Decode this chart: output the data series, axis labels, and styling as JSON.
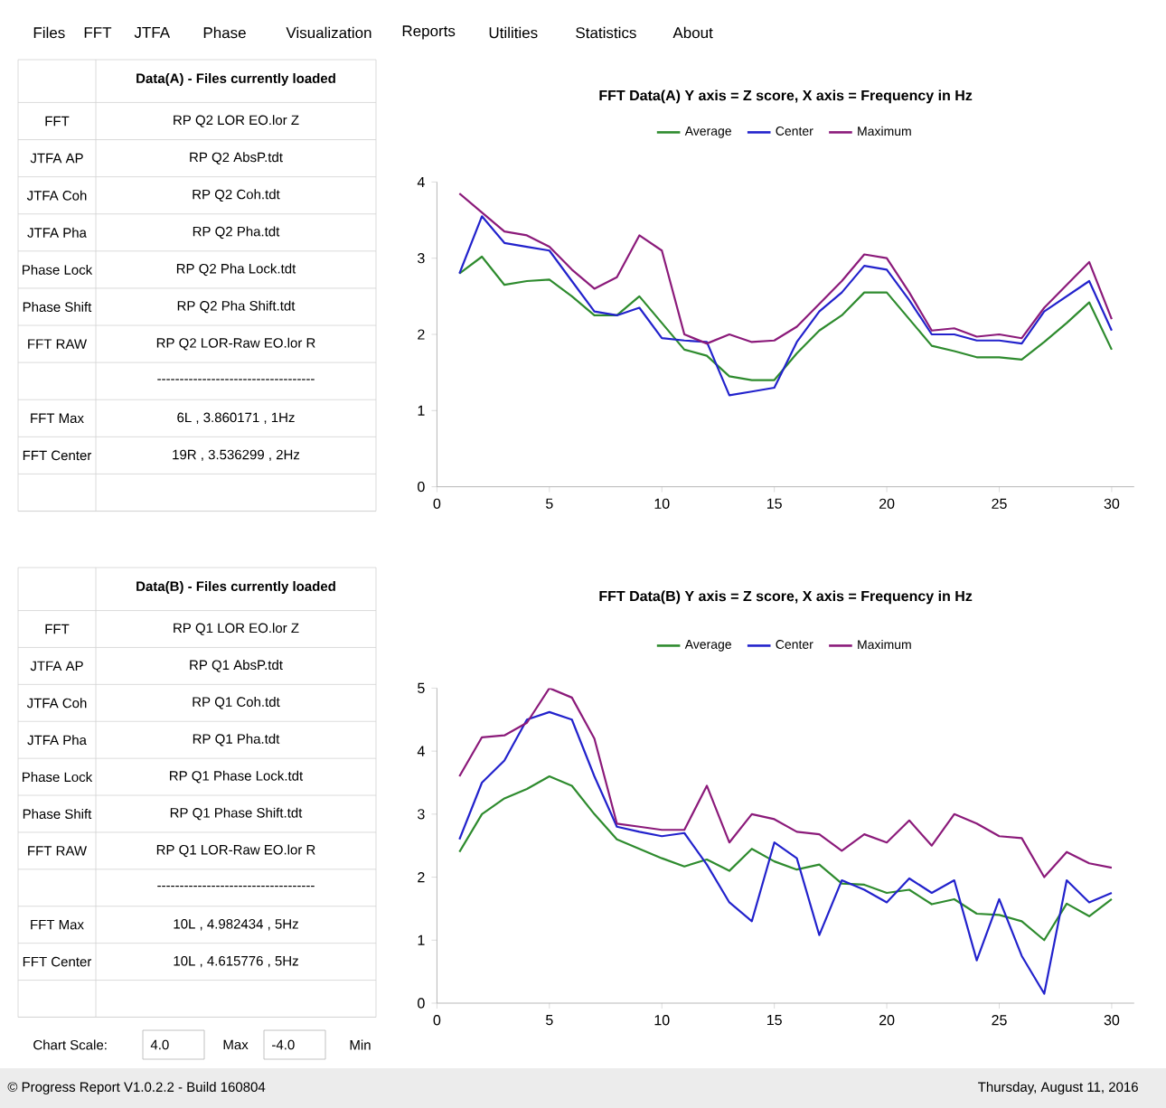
{
  "chart_data": [
    {
      "type": "other",
      "annotations": [
        "Files",
        "FFT",
        "JTFA",
        "Phase",
        "Visualization",
        "Reports",
        "Utilities",
        "Statistics",
        "About"
      ]
    },
    {
      "type": "other",
      "title": "Data(A) - Files currently loaded",
      "y_categories": [
        "FFT",
        "JTFA AP",
        "JTFA Coh",
        "JTFA Pha",
        "Phase Lock",
        "Phase Shift",
        "FFT RAW",
        null,
        "FFT Max",
        "FFT Center",
        null
      ],
      "cell_labels": [
        [
          "RP Q2 LOR EO.lor Z"
        ],
        [
          "RP Q2 AbsP.tdt"
        ],
        [
          "RP Q2 Coh.tdt"
        ],
        [
          "RP Q2 Pha.tdt"
        ],
        [
          "RP Q2 Pha Lock.tdt"
        ],
        [
          "RP Q2 Pha Shift.tdt"
        ],
        [
          "RP Q2 LOR-Raw EO.lor R"
        ],
        [
          "-----------------------------------"
        ],
        [
          "6L , 3.860171 , 1Hz"
        ],
        [
          "19R , 3.536299 , 2Hz"
        ],
        [
          null
        ]
      ]
    },
    {
      "type": "line",
      "title": "FFT Data(A) Y axis = Z score, X axis = Frequency in Hz",
      "x": [
        1,
        2,
        3,
        4,
        5,
        6,
        7,
        8,
        9,
        10,
        11,
        12,
        13,
        14,
        15,
        16,
        17,
        18,
        19,
        20,
        21,
        22,
        23,
        24,
        25,
        26,
        27,
        28,
        29,
        30
      ],
      "series": [
        {
          "name": "Average",
          "color": "#2e8b2e",
          "values": [
            2.8,
            3.02,
            2.65,
            2.7,
            2.72,
            2.5,
            2.25,
            2.25,
            2.5,
            2.15,
            1.8,
            1.72,
            1.45,
            1.4,
            1.4,
            1.75,
            2.05,
            2.25,
            2.55,
            2.55,
            2.2,
            1.85,
            1.78,
            1.7,
            1.7,
            1.67,
            1.9,
            2.15,
            2.42,
            1.8
          ]
        },
        {
          "name": "Center",
          "color": "#2222cc",
          "values": [
            2.8,
            3.55,
            3.2,
            3.15,
            3.1,
            2.7,
            2.3,
            2.25,
            2.35,
            1.95,
            1.92,
            1.9,
            1.2,
            1.25,
            1.3,
            1.9,
            2.3,
            2.55,
            2.9,
            2.85,
            2.45,
            2.0,
            2.0,
            1.92,
            1.92,
            1.88,
            2.3,
            2.5,
            2.7,
            2.05
          ]
        },
        {
          "name": "Maximum",
          "color": "#8b1a7a",
          "values": [
            3.85,
            3.6,
            3.35,
            3.3,
            3.15,
            2.85,
            2.6,
            2.75,
            3.3,
            3.1,
            2.0,
            1.88,
            2.0,
            1.9,
            1.92,
            2.1,
            2.4,
            2.7,
            3.05,
            3.0,
            2.55,
            2.05,
            2.08,
            1.97,
            2.0,
            1.95,
            2.35,
            2.65,
            2.95,
            2.2
          ]
        }
      ],
      "xlim": [
        0,
        31
      ],
      "xticks": [
        0,
        5,
        10,
        15,
        20,
        25,
        30
      ],
      "ylim": [
        0,
        4
      ],
      "yticks": [
        0,
        1,
        2,
        3,
        4
      ],
      "legend": "top",
      "marker": "none",
      "line_style": "solid"
    },
    {
      "type": "other",
      "title": "Data(B) - Files currently loaded",
      "y_categories": [
        "FFT",
        "JTFA AP",
        "JTFA Coh",
        "JTFA Pha",
        "Phase Lock",
        "Phase Shift",
        "FFT RAW",
        null,
        "FFT Max",
        "FFT Center",
        null
      ],
      "cell_labels": [
        [
          "RP Q1 LOR EO.lor Z"
        ],
        [
          "RP Q1 AbsP.tdt"
        ],
        [
          "RP Q1 Coh.tdt"
        ],
        [
          "RP Q1 Pha.tdt"
        ],
        [
          "RP Q1 Phase Lock.tdt"
        ],
        [
          "RP Q1 Phase Shift.tdt"
        ],
        [
          "RP Q1 LOR-Raw EO.lor R"
        ],
        [
          "-----------------------------------"
        ],
        [
          "10L , 4.982434 , 5Hz"
        ],
        [
          "10L , 4.615776 , 5Hz"
        ],
        [
          null
        ]
      ]
    },
    {
      "type": "line",
      "title": "FFT Data(B) Y axis = Z score, X axis = Frequency in Hz",
      "x": [
        1,
        2,
        3,
        4,
        5,
        6,
        7,
        8,
        9,
        10,
        11,
        12,
        13,
        14,
        15,
        16,
        17,
        18,
        19,
        20,
        21,
        22,
        23,
        24,
        25,
        26,
        27,
        28,
        29,
        30
      ],
      "series": [
        {
          "name": "Average",
          "color": "#2e8b2e",
          "values": [
            2.4,
            3.0,
            3.25,
            3.4,
            3.6,
            3.45,
            3.0,
            2.6,
            2.45,
            2.3,
            2.17,
            2.28,
            2.1,
            2.45,
            2.25,
            2.12,
            2.2,
            1.9,
            1.88,
            1.75,
            1.8,
            1.57,
            1.65,
            1.42,
            1.4,
            1.3,
            1.0,
            1.58,
            1.38,
            1.65
          ]
        },
        {
          "name": "Center",
          "color": "#2222cc",
          "values": [
            2.6,
            3.5,
            3.85,
            4.5,
            4.62,
            4.5,
            3.6,
            2.8,
            2.72,
            2.65,
            2.7,
            2.2,
            1.6,
            1.3,
            2.55,
            2.3,
            1.08,
            1.95,
            1.8,
            1.6,
            1.98,
            1.75,
            1.95,
            0.68,
            1.65,
            0.75,
            0.15,
            1.95,
            1.6,
            1.75
          ]
        },
        {
          "name": "Maximum",
          "color": "#8b1a7a",
          "values": [
            3.6,
            4.22,
            4.25,
            4.45,
            5.0,
            4.85,
            4.2,
            2.85,
            2.8,
            2.75,
            2.75,
            3.45,
            2.55,
            3.0,
            2.92,
            2.72,
            2.68,
            2.42,
            2.68,
            2.55,
            2.9,
            2.5,
            3.0,
            2.85,
            2.65,
            2.62,
            2.0,
            2.4,
            2.22,
            2.15
          ]
        }
      ],
      "xlim": [
        0,
        31
      ],
      "xticks": [
        0,
        5,
        10,
        15,
        20,
        25,
        30
      ],
      "ylim": [
        0,
        5
      ],
      "yticks": [
        0,
        1,
        2,
        3,
        4,
        5
      ],
      "legend": "top",
      "marker": "none",
      "line_style": "solid"
    },
    {
      "type": "other",
      "annotations": [
        "Chart Scale:",
        "4.0",
        "Max",
        "-4.0",
        "Min",
        "© Progress Report V1.0.2.2 - Build 160804",
        "Thursday, August 11, 2016"
      ]
    }
  ]
}
